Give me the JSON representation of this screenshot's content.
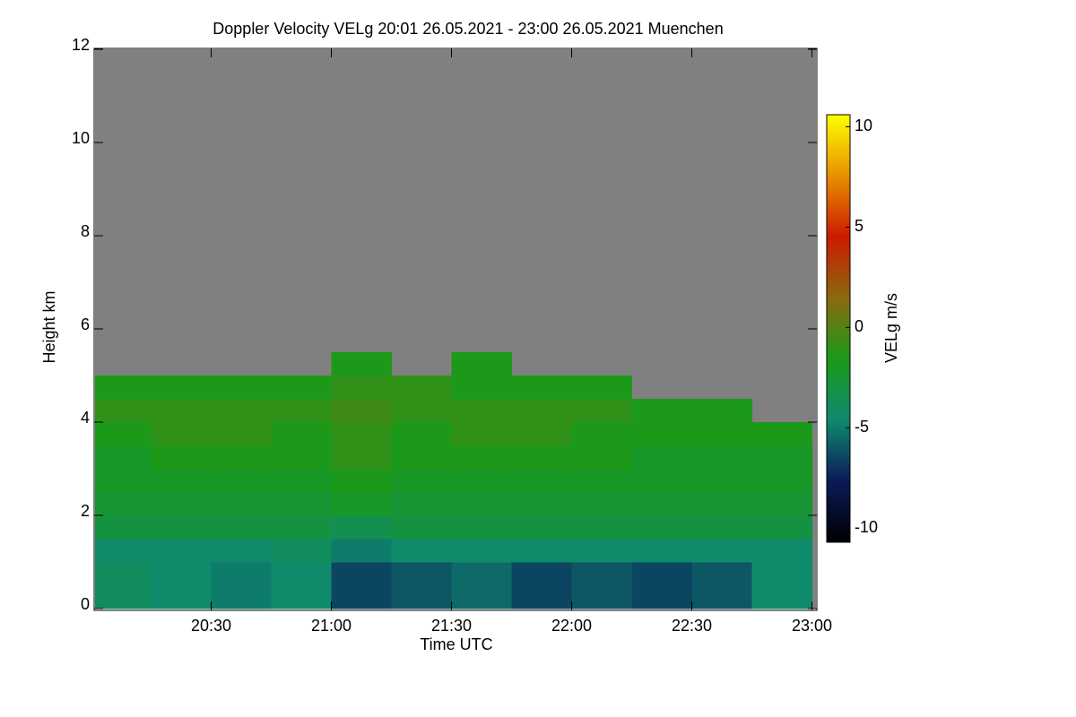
{
  "chart_data": {
    "type": "heatmap",
    "title": "Doppler Velocity VELg   20:01 26.05.2021 - 23:00 26.05.2021 Muenchen",
    "xlabel": "Time UTC",
    "ylabel": "Height km",
    "colorbar_label": "VELg m/s",
    "x": [
      1201,
      1215,
      1230,
      1245,
      1260,
      1275,
      1290,
      1305,
      1320,
      1335,
      1350,
      1365,
      1380
    ],
    "y": [
      0,
      0.5,
      1,
      1.5,
      2,
      2.5,
      3,
      3.5,
      4,
      4.5,
      5,
      5.5
    ],
    "z": [
      [
        -4,
        -4.5,
        -5,
        -4.5,
        -6.5,
        -6,
        -5.5,
        -6.5,
        -6,
        -6.5,
        -6,
        -4.5
      ],
      [
        -4,
        -4.5,
        -5,
        -4.5,
        -6.5,
        -6,
        -5.5,
        -6.5,
        -6,
        -6.5,
        -6,
        -4.5
      ],
      [
        -4.5,
        -4.5,
        -4.5,
        -4,
        -5,
        -4.5,
        -4.5,
        -4.5,
        -4.5,
        -4.5,
        -4.5,
        -4.5
      ],
      [
        -3,
        -3,
        -3,
        -3,
        -3.5,
        -3,
        -3,
        -3,
        -3,
        -3,
        -3,
        -3
      ],
      [
        -2.5,
        -2.5,
        -2.5,
        -2.5,
        -2,
        -2.5,
        -2.5,
        -2.5,
        -2.5,
        -2.5,
        -2.5,
        -2.5
      ],
      [
        -2,
        -2,
        -2,
        -2,
        -1.5,
        -2,
        -2,
        -2,
        -2,
        -2,
        -2,
        -2
      ],
      [
        -2,
        -1.5,
        -1.5,
        -1.5,
        -1,
        -1.5,
        -1.5,
        -1.5,
        -1.5,
        -2,
        -2,
        -2
      ],
      [
        -1.5,
        -1,
        -1,
        -1.5,
        -1,
        -1.5,
        -1,
        -1,
        -1.5,
        -1.5,
        -1.5,
        -1.5
      ],
      [
        -1,
        -1,
        -1,
        -1,
        -0.5,
        -1,
        -1,
        -1,
        -1,
        -1.5,
        -1.5,
        null
      ],
      [
        -1.5,
        -1.5,
        -1.5,
        -1.5,
        -1,
        -1,
        -1.5,
        -1.5,
        -1.5,
        null,
        null,
        null
      ],
      [
        null,
        null,
        null,
        null,
        -1.5,
        null,
        -1.5,
        null,
        null,
        null,
        null,
        null
      ]
    ],
    "xlim": [
      1201,
      1381
    ],
    "xticks": [
      {
        "value": 1230,
        "label": "20:30"
      },
      {
        "value": 1260,
        "label": "21:00"
      },
      {
        "value": 1290,
        "label": "21:30"
      },
      {
        "value": 1320,
        "label": "22:00"
      },
      {
        "value": 1350,
        "label": "22:30"
      },
      {
        "value": 1380,
        "label": "23:00"
      }
    ],
    "ylim": [
      0,
      12
    ],
    "yticks": [
      0,
      2,
      4,
      6,
      8,
      10,
      12
    ],
    "zlim": [
      -10.7,
      10.6
    ],
    "zticks": [
      -10,
      -5,
      0,
      5,
      10
    ],
    "colormap": [
      "#000000",
      "#0a1a5a",
      "#0f8a6e",
      "#1a9a1a",
      "#8a6a10",
      "#cc1a00",
      "#e89000",
      "#ffff00"
    ],
    "missing_color": "#808080"
  }
}
